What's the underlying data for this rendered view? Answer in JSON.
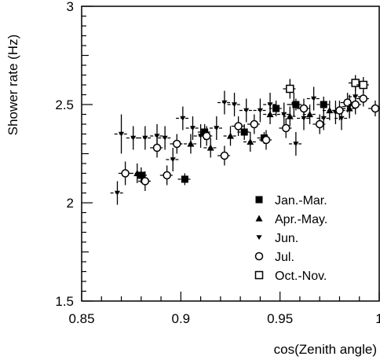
{
  "chart_data": {
    "type": "scatter",
    "title": "",
    "xlabel": "cos(Zenith angle)",
    "ylabel": "Shower rate (Hz)",
    "xlim": [
      0.85,
      1.0
    ],
    "ylim": [
      1.5,
      3.0
    ],
    "xticks": [
      0.85,
      0.9,
      0.95,
      1.0
    ],
    "xtick_labels": [
      "0.85",
      "0.9",
      "0.95",
      "1"
    ],
    "yticks": [
      1.5,
      2.0,
      2.5,
      3.0
    ],
    "ytick_labels": [
      "1.5",
      "2",
      "2.5",
      "3"
    ],
    "grid": false,
    "legend_position": "bottom-right",
    "series": [
      {
        "name": "Jan.-Mar.",
        "marker": "filled-square",
        "points": [
          [
            0.88,
            2.14,
            0.03,
            0.04
          ],
          [
            0.902,
            2.12,
            0.03,
            0.03
          ],
          [
            0.912,
            2.36,
            0.03,
            0.04
          ],
          [
            0.932,
            2.36,
            0.03,
            0.04
          ],
          [
            0.942,
            2.33,
            0.03,
            0.03
          ],
          [
            0.948,
            2.48,
            0.03,
            0.04
          ],
          [
            0.958,
            2.5,
            0.03,
            0.03
          ],
          [
            0.972,
            2.5,
            0.03,
            0.04
          ]
        ]
      },
      {
        "name": "Apr.-May.",
        "marker": "filled-triangle-up",
        "points": [
          [
            0.878,
            2.15,
            0.03,
            0.05
          ],
          [
            0.905,
            2.3,
            0.03,
            0.05
          ],
          [
            0.915,
            2.28,
            0.03,
            0.05
          ],
          [
            0.925,
            2.34,
            0.03,
            0.05
          ],
          [
            0.935,
            2.31,
            0.03,
            0.05
          ],
          [
            0.945,
            2.45,
            0.03,
            0.05
          ],
          [
            0.955,
            2.44,
            0.03,
            0.05
          ],
          [
            0.965,
            2.45,
            0.03,
            0.05
          ],
          [
            0.975,
            2.47,
            0.03,
            0.05
          ],
          [
            0.985,
            2.48,
            0.03,
            0.05
          ]
        ]
      },
      {
        "name": "Jun.",
        "marker": "filled-triangle-down",
        "points": [
          [
            0.868,
            2.05,
            0.03,
            0.06
          ],
          [
            0.87,
            2.35,
            0.03,
            0.1
          ],
          [
            0.876,
            2.33,
            0.03,
            0.06
          ],
          [
            0.882,
            2.33,
            0.03,
            0.06
          ],
          [
            0.888,
            2.34,
            0.03,
            0.06
          ],
          [
            0.892,
            2.33,
            0.03,
            0.06
          ],
          [
            0.896,
            2.22,
            0.03,
            0.06
          ],
          [
            0.901,
            2.43,
            0.03,
            0.06
          ],
          [
            0.906,
            2.38,
            0.03,
            0.06
          ],
          [
            0.91,
            2.34,
            0.03,
            0.06
          ],
          [
            0.918,
            2.38,
            0.03,
            0.06
          ],
          [
            0.922,
            2.51,
            0.03,
            0.06
          ],
          [
            0.927,
            2.5,
            0.03,
            0.06
          ],
          [
            0.933,
            2.47,
            0.03,
            0.06
          ],
          [
            0.94,
            2.47,
            0.03,
            0.06
          ],
          [
            0.945,
            2.5,
            0.03,
            0.06
          ],
          [
            0.952,
            2.45,
            0.03,
            0.06
          ],
          [
            0.957,
            2.5,
            0.03,
            0.06
          ],
          [
            0.962,
            2.43,
            0.03,
            0.06
          ],
          [
            0.967,
            2.53,
            0.03,
            0.06
          ],
          [
            0.972,
            2.43,
            0.03,
            0.06
          ],
          [
            0.978,
            2.46,
            0.03,
            0.06
          ],
          [
            0.981,
            2.43,
            0.03,
            0.06
          ],
          [
            0.985,
            2.49,
            0.03,
            0.06
          ],
          [
            0.958,
            2.3,
            0.03,
            0.06
          ],
          [
            0.988,
            2.54,
            0.03,
            0.06
          ]
        ]
      },
      {
        "name": "Jul.",
        "marker": "open-circle",
        "points": [
          [
            0.872,
            2.15,
            0.03,
            0.06
          ],
          [
            0.882,
            2.11,
            0.03,
            0.05
          ],
          [
            0.888,
            2.28,
            0.03,
            0.05
          ],
          [
            0.893,
            2.14,
            0.03,
            0.05
          ],
          [
            0.898,
            2.3,
            0.03,
            0.05
          ],
          [
            0.913,
            2.34,
            0.03,
            0.05
          ],
          [
            0.922,
            2.24,
            0.03,
            0.05
          ],
          [
            0.929,
            2.39,
            0.03,
            0.05
          ],
          [
            0.937,
            2.4,
            0.03,
            0.05
          ],
          [
            0.943,
            2.32,
            0.03,
            0.05
          ],
          [
            0.953,
            2.38,
            0.03,
            0.05
          ],
          [
            0.962,
            2.48,
            0.03,
            0.05
          ],
          [
            0.97,
            2.4,
            0.03,
            0.05
          ],
          [
            0.98,
            2.47,
            0.03,
            0.05
          ],
          [
            0.984,
            2.51,
            0.03,
            0.05
          ],
          [
            0.988,
            2.5,
            0.03,
            0.05
          ],
          [
            0.992,
            2.53,
            0.03,
            0.04
          ],
          [
            0.998,
            2.48,
            0.03,
            0.04
          ]
        ]
      },
      {
        "name": "Oct.-Nov.",
        "marker": "open-square",
        "points": [
          [
            0.955,
            2.58,
            0.03,
            0.05
          ],
          [
            0.988,
            2.61,
            0.03,
            0.04
          ],
          [
            0.992,
            2.6,
            0.03,
            0.04
          ]
        ]
      }
    ]
  }
}
